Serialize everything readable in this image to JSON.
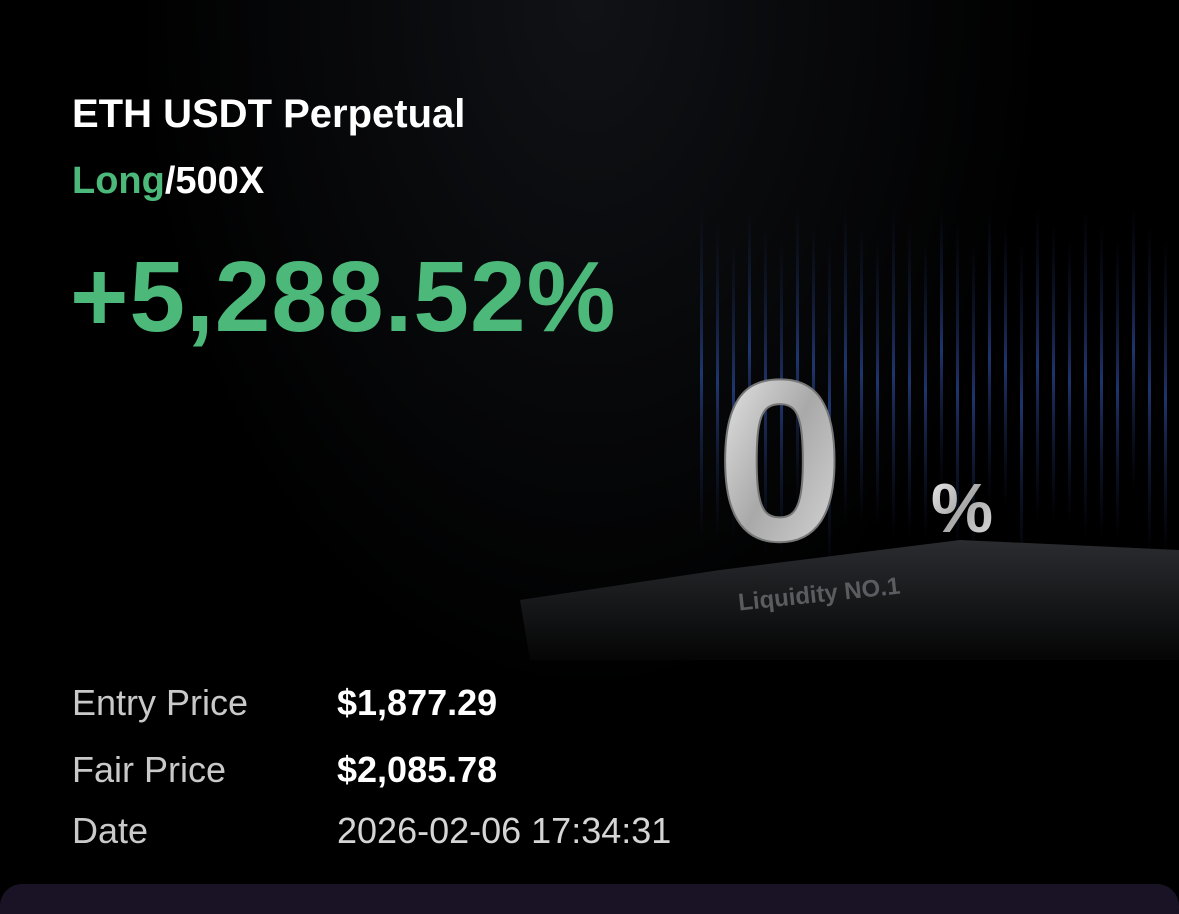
{
  "header": {
    "title": "ETH USDT Perpetual",
    "side": "Long",
    "leverage": "/500X"
  },
  "roi": "+5,288.52%",
  "graphic": {
    "digit": "0",
    "percent": "%",
    "caption": "Liquidity NO.1"
  },
  "details": [
    {
      "label": "Entry Price",
      "value": "$1,877.29"
    },
    {
      "label": "Fair Price",
      "value": "$2,085.78"
    },
    {
      "label": "Date",
      "value": "2026-02-06 17:34:31"
    }
  ]
}
